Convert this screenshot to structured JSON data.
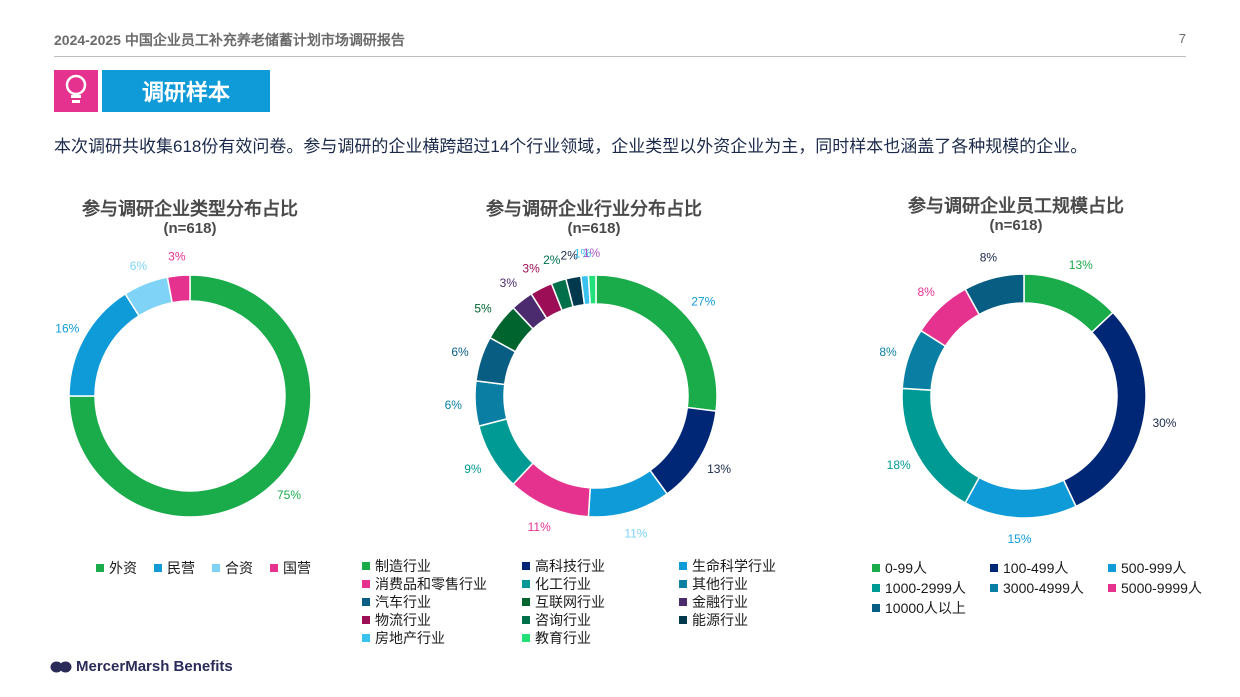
{
  "header": {
    "title": "2024-2025 中国企业员工补充养老储蓄计划市场调研报告",
    "page": "7"
  },
  "section": {
    "label": "调研样本",
    "icon": "bulb-icon"
  },
  "intro": "本次调研共收集618份有效问卷。参与调研的企业横跨超过14个行业领域，企业类型以外资企业为主，同时样本也涵盖了各种规模的企业。",
  "brand": {
    "name": "MercerMarsh Benefits",
    "color": "#2b2b5a"
  },
  "colors": {
    "accent_pink": "#e5328f",
    "accent_blue": "#0f9ad8"
  },
  "chart_data": [
    {
      "type": "pie",
      "title": "参与调研企业类型分布占比",
      "subtitle": "(n=618)",
      "categories": [
        "外资",
        "民营",
        "合资",
        "国营"
      ],
      "values": [
        75,
        16,
        6,
        3
      ],
      "labels": [
        "75%",
        "16%",
        "6%",
        "3%"
      ],
      "colors": [
        "#1aab4b",
        "#0f9ad8",
        "#7fd3f7",
        "#e5328f"
      ],
      "label_colors": [
        "#1aab4b",
        "#0f9ad8",
        "#7fd3f7",
        "#e5328f"
      ]
    },
    {
      "type": "pie",
      "title": "参与调研企业行业分布占比",
      "subtitle": "(n=618)",
      "categories": [
        "制造行业",
        "高科技行业",
        "生命科学行业",
        "消费品和零售行业",
        "化工行业",
        "其他行业",
        "汽车行业",
        "互联网行业",
        "金融行业",
        "物流行业",
        "咨询行业",
        "能源行业",
        "房地产行业",
        "教育行业"
      ],
      "values": [
        27,
        13,
        11,
        11,
        9,
        6,
        6,
        5,
        3,
        3,
        2,
        2,
        1,
        1
      ],
      "labels": [
        "27%",
        "13%",
        "11%",
        "11%",
        "9%",
        "6%",
        "6%",
        "5%",
        "3%",
        "3%",
        "2%",
        "2%",
        "1%",
        "1%"
      ],
      "colors": [
        "#1aab4b",
        "#002776",
        "#0f9ad8",
        "#e5328f",
        "#009a94",
        "#0b7ea3",
        "#085e82",
        "#00642f",
        "#4b2a6e",
        "#9c0f56",
        "#00704a",
        "#00384d",
        "#39c1f0",
        "#22e07a"
      ],
      "label_colors": [
        "#0f9ad8",
        "#1b2a4a",
        "#7fd3f7",
        "#e5328f",
        "#009a94",
        "#0b7ea3",
        "#085e82",
        "#00642f",
        "#4b2a6e",
        "#9c0f56",
        "#00704a",
        "#1b2a4a",
        "#39c1f0",
        "#b056c6"
      ]
    },
    {
      "type": "pie",
      "title": "参与调研企业员工规模占比",
      "subtitle": "(n=618)",
      "categories": [
        "0-99人",
        "100-499人",
        "500-999人",
        "1000-2999人",
        "3000-4999人",
        "5000-9999人",
        "10000人以上"
      ],
      "values": [
        13,
        30,
        15,
        18,
        8,
        8,
        8
      ],
      "labels": [
        "13%",
        "30%",
        "15%",
        "18%",
        "8%",
        "8%",
        "8%"
      ],
      "colors": [
        "#1aab4b",
        "#002776",
        "#0f9ad8",
        "#009a94",
        "#0b7ea3",
        "#e5328f",
        "#085e82"
      ],
      "label_colors": [
        "#1aab4b",
        "#1b2a4a",
        "#0f9ad8",
        "#009a94",
        "#0b7ea3",
        "#e5328f",
        "#1b2a4a"
      ]
    }
  ]
}
